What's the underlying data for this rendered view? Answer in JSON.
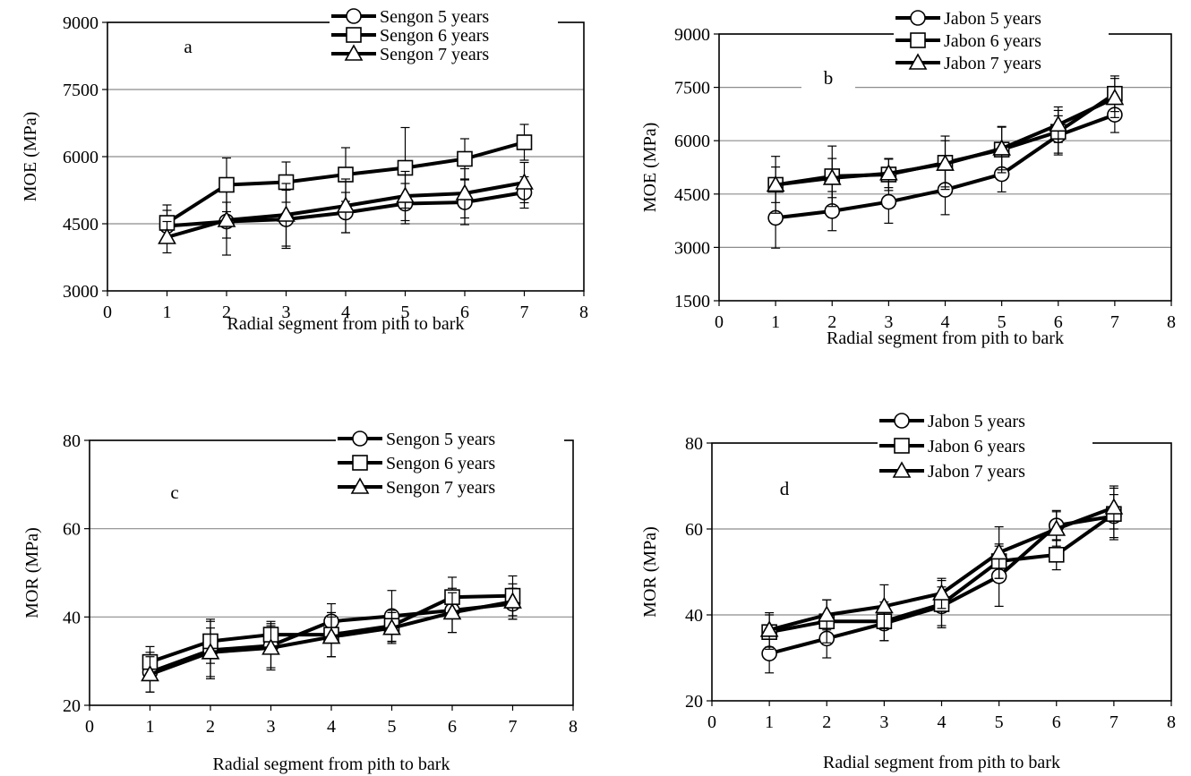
{
  "chart_data": [
    {
      "type": "line",
      "panel": "a",
      "xlabel": "Radial segment from pith to bark",
      "ylabel": "MOE (MPa)",
      "xlim": [
        0,
        8
      ],
      "ylim": [
        3000,
        9000
      ],
      "xticks": [
        0,
        1,
        2,
        3,
        4,
        5,
        6,
        7,
        8
      ],
      "yticks": [
        3000,
        4500,
        6000,
        7500,
        9000
      ],
      "grid": "horizontal",
      "legend_position": "top-right",
      "x": [
        1,
        2,
        3,
        4,
        5,
        6,
        7
      ],
      "series": [
        {
          "name": "Sengon 5 years",
          "marker": "circle",
          "values": [
            4450,
            4550,
            4600,
            4750,
            4950,
            4980,
            5200
          ],
          "error": [
            350,
            750,
            650,
            450,
            450,
            500,
            350
          ]
        },
        {
          "name": "Sengon 6 years",
          "marker": "square",
          "values": [
            4520,
            5370,
            5430,
            5600,
            5750,
            5950,
            6320
          ],
          "error": [
            400,
            600,
            450,
            600,
            900,
            450,
            400
          ]
        },
        {
          "name": "Sengon 7 years",
          "marker": "triangle",
          "values": [
            4200,
            4580,
            4700,
            4900,
            5120,
            5180,
            5420
          ],
          "error": [
            350,
            400,
            700,
            600,
            550,
            550,
            450
          ]
        }
      ]
    },
    {
      "type": "line",
      "panel": "b",
      "xlabel": "Radial segment from pith to bark",
      "ylabel": "MOE (MPa)",
      "xlim": [
        0,
        8
      ],
      "ylim": [
        1500,
        9000
      ],
      "xticks": [
        0,
        1,
        2,
        3,
        4,
        5,
        6,
        7,
        8
      ],
      "yticks": [
        1500,
        3000,
        4500,
        6000,
        7500,
        9000
      ],
      "grid": "horizontal",
      "legend_position": "top-right",
      "x": [
        1,
        2,
        3,
        4,
        5,
        6,
        7
      ],
      "series": [
        {
          "name": "Jabon 5 years",
          "marker": "circle",
          "values": [
            3830,
            4020,
            4280,
            4620,
            5060,
            6150,
            6730
          ],
          "error": [
            850,
            550,
            600,
            700,
            500,
            550,
            500
          ]
        },
        {
          "name": "Jabon 6 years",
          "marker": "square",
          "values": [
            4760,
            5000,
            5050,
            5380,
            5750,
            6250,
            7320
          ],
          "error": [
            500,
            850,
            450,
            750,
            650,
            600,
            500
          ]
        },
        {
          "name": "Jabon 7 years",
          "marker": "triangle",
          "values": [
            4760,
            4950,
            5080,
            5350,
            5780,
            6450,
            7200
          ],
          "error": [
            800,
            550,
            400,
            650,
            600,
            500,
            550
          ]
        }
      ]
    },
    {
      "type": "line",
      "panel": "c",
      "xlabel": "Radial segment from pith to bark",
      "ylabel": "MOR (MPa)",
      "xlim": [
        0,
        8
      ],
      "ylim": [
        20,
        80
      ],
      "xticks": [
        0,
        1,
        2,
        3,
        4,
        5,
        6,
        7,
        8
      ],
      "yticks": [
        20,
        40,
        60,
        80
      ],
      "grid": "horizontal",
      "legend_position": "top-right",
      "x": [
        1,
        2,
        3,
        4,
        5,
        6,
        7
      ],
      "series": [
        {
          "name": "Sengon 5 years",
          "marker": "circle",
          "values": [
            27.5,
            32.5,
            33.5,
            39.0,
            40.2,
            41.5,
            43.0
          ],
          "error": [
            4.5,
            6.5,
            5.0,
            4.0,
            5.8,
            5.0,
            3.5
          ]
        },
        {
          "name": "Sengon 6 years",
          "marker": "square",
          "values": [
            29.8,
            34.5,
            36.0,
            36.0,
            38.0,
            44.5,
            44.8
          ],
          "error": [
            3.5,
            5.0,
            3.0,
            5.0,
            3.5,
            4.5,
            4.5
          ]
        },
        {
          "name": "Sengon 7 years",
          "marker": "triangle",
          "values": [
            27.0,
            32.0,
            33.0,
            35.5,
            37.5,
            41.0,
            43.5
          ],
          "error": [
            4.0,
            5.5,
            5.0,
            4.5,
            3.5,
            4.5,
            4.0
          ]
        }
      ]
    },
    {
      "type": "line",
      "panel": "d",
      "xlabel": "Radial segment from pith to bark",
      "ylabel": "MOR (MPa)",
      "xlim": [
        0,
        8
      ],
      "ylim": [
        20,
        80
      ],
      "xticks": [
        0,
        1,
        2,
        3,
        4,
        5,
        6,
        7,
        8
      ],
      "yticks": [
        20,
        40,
        60,
        80
      ],
      "grid": "horizontal",
      "legend_position": "top-right",
      "x": [
        1,
        2,
        3,
        4,
        5,
        6,
        7
      ],
      "series": [
        {
          "name": "Jabon 5 years",
          "marker": "circle",
          "values": [
            31.0,
            34.5,
            38.0,
            42.0,
            49.0,
            60.8,
            63.0
          ],
          "error": [
            4.5,
            4.5,
            4.0,
            4.5,
            7.0,
            3.5,
            5.0
          ]
        },
        {
          "name": "Jabon 6 years",
          "marker": "square",
          "values": [
            36.0,
            38.5,
            38.5,
            42.5,
            52.5,
            54.0,
            63.5
          ],
          "error": [
            4.0,
            5.0,
            4.5,
            5.5,
            4.0,
            3.5,
            6.0
          ]
        },
        {
          "name": "Jabon 7 years",
          "marker": "triangle",
          "values": [
            36.5,
            40.0,
            42.0,
            45.0,
            54.5,
            60.0,
            65.0
          ],
          "error": [
            4.0,
            3.5,
            5.0,
            3.5,
            6.0,
            4.0,
            5.0
          ]
        }
      ]
    }
  ]
}
